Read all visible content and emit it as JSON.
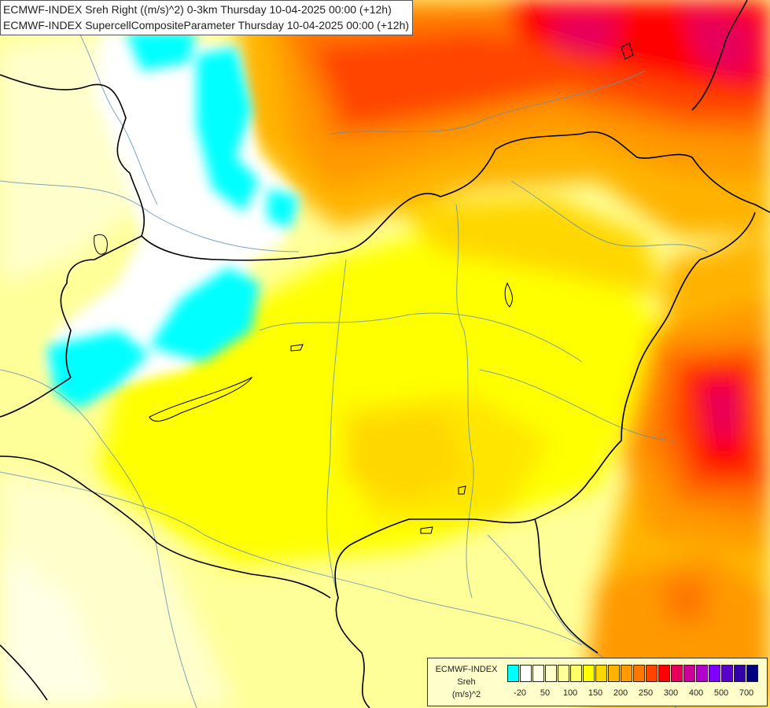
{
  "header": {
    "line1": "ECMWF-INDEX Sreh Right ((m/s)^2) 0-3km Thursday 10-04-2025 00:00 (+12h)",
    "line2": "ECMWF-INDEX SupercellCompositeParameter Thursday 10-04-2025 00:00 (+12h)"
  },
  "legend": {
    "model": "ECMWF-INDEX",
    "param": "Sreh",
    "unit": "(m/s)^2",
    "colors": [
      "#00ffff",
      "#ffffff",
      "#ffffe6",
      "#ffffcc",
      "#ffff99",
      "#ffff66",
      "#ffff00",
      "#ffd700",
      "#ffb300",
      "#ff9900",
      "#ff7700",
      "#ff4400",
      "#ff0000",
      "#e6005c",
      "#cc0099",
      "#b300cc",
      "#8000ff",
      "#5a00cc",
      "#3300aa",
      "#000080"
    ],
    "ticks": [
      "-20",
      "50",
      "100",
      "150",
      "200",
      "250",
      "300",
      "400",
      "500",
      "700"
    ]
  },
  "colors": {
    "border": "#000000",
    "river": "#5f8fb0"
  }
}
